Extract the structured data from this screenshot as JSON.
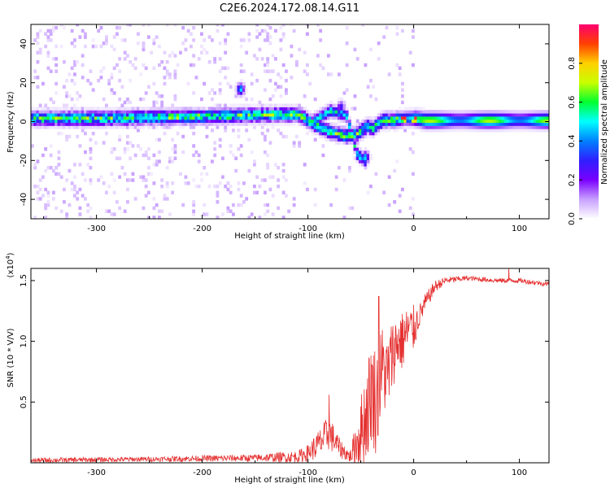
{
  "title": "C2E6.2024.172.08.14.G11",
  "chart_data": [
    {
      "type": "heatmap",
      "name": "spectrogram",
      "xlabel": "Height of straight line (km)",
      "ylabel": "Frequency (Hz)",
      "xlim": [
        -362,
        128
      ],
      "ylim": [
        -50,
        50
      ],
      "xticks": [
        -300,
        -200,
        -100,
        0,
        100
      ],
      "yticks": [
        -40,
        -20,
        0,
        20,
        40
      ],
      "xtick_labels": [
        "-300",
        "-200",
        "-100",
        "0",
        "100"
      ],
      "ytick_labels": [
        "-40",
        "-20",
        "0",
        "20",
        "40"
      ],
      "colorbar": {
        "label": "Normalized spectral amplitude",
        "range": [
          0,
          1
        ],
        "ticks": [
          0.0,
          0.2,
          0.4,
          0.6,
          0.8
        ],
        "tick_labels": [
          "0.0",
          "0.2",
          "0.4",
          "0.6",
          "0.8"
        ],
        "colors": [
          "#ffffff",
          "#c8a0ff",
          "#7a00ff",
          "#2f1fff",
          "#0080ff",
          "#00ffff",
          "#00ff30",
          "#c8ff00",
          "#ffd000",
          "#ff4000",
          "#ff0070"
        ]
      },
      "ridge": {
        "description_points_x_km": [
          -362,
          -300,
          -200,
          -130,
          -110,
          -95,
          -80,
          -65,
          -55,
          -45,
          -40,
          -30,
          -20,
          -10,
          0,
          10,
          30,
          60,
          100,
          128
        ],
        "center_freq_hz": [
          1,
          1,
          2,
          3,
          3,
          -2,
          -6,
          -8,
          -7,
          -3,
          -4,
          0,
          0,
          1,
          1,
          0,
          0,
          0,
          0,
          0
        ],
        "secondary_freq_hz": [
          null,
          null,
          null,
          null,
          null,
          0,
          5,
          3,
          -17,
          -22,
          null,
          null,
          null,
          null,
          null,
          null,
          null,
          null,
          null,
          null
        ]
      },
      "blobs": [
        {
          "x": -165,
          "f": 16,
          "v": 0.5
        },
        {
          "x": -47,
          "f": -19,
          "v": 0.5
        },
        {
          "x": -70,
          "f": 7,
          "v": 0.3
        }
      ]
    },
    {
      "type": "line",
      "name": "snr",
      "xlabel": "Height of straight line (km)",
      "ylabel": "SNR (10 * V/V)",
      "scale_label": "(x10",
      "scale_exp": "4",
      "scale_close": ")",
      "xlim": [
        -362,
        128
      ],
      "ylim": [
        0,
        1.6
      ],
      "xticks": [
        -300,
        -200,
        -100,
        0,
        100
      ],
      "yticks": [
        0.5,
        1.0,
        1.5
      ],
      "xtick_labels": [
        "-300",
        "-200",
        "-100",
        "0",
        "100"
      ],
      "ytick_labels": [
        "0.5",
        "1.0",
        "1.5"
      ],
      "color": "#e53030",
      "envelope": {
        "x_km": [
          -362,
          -250,
          -150,
          -110,
          -100,
          -90,
          -80,
          -70,
          -60,
          -50,
          -45,
          -40,
          -35,
          -30,
          -25,
          -20,
          -15,
          -10,
          -5,
          0,
          5,
          10,
          20,
          30,
          50,
          80,
          100,
          128
        ],
        "base": [
          0.02,
          0.03,
          0.04,
          0.05,
          0.08,
          0.15,
          0.25,
          0.12,
          0.05,
          0.25,
          0.4,
          0.6,
          0.5,
          0.8,
          0.7,
          0.9,
          1.0,
          1.0,
          1.1,
          1.1,
          1.2,
          1.3,
          1.45,
          1.5,
          1.52,
          1.5,
          1.5,
          1.47
        ],
        "noise": [
          0.02,
          0.02,
          0.03,
          0.05,
          0.07,
          0.12,
          0.15,
          0.08,
          0.05,
          0.3,
          0.4,
          0.45,
          0.45,
          0.35,
          0.35,
          0.3,
          0.25,
          0.25,
          0.2,
          0.2,
          0.1,
          0.08,
          0.05,
          0.03,
          0.02,
          0.02,
          0.02,
          0.02
        ]
      },
      "peaks": [
        {
          "x": -33,
          "v": 1.37
        },
        {
          "x": -80,
          "v": 0.56
        },
        {
          "x": -10,
          "v": 1.18
        },
        {
          "x": 90,
          "v": 1.6
        }
      ]
    }
  ]
}
